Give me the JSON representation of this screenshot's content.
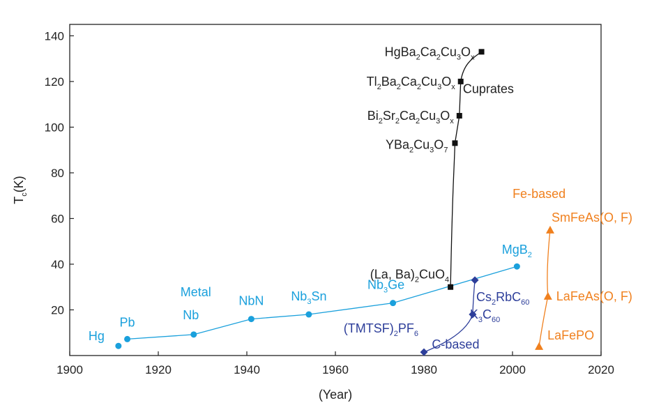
{
  "chart_data": {
    "type": "scatter",
    "xlabel": "(Year)",
    "ylabel": "Tc(K)",
    "xlim": [
      1900,
      2020
    ],
    "ylim": [
      0,
      145
    ],
    "xticks": [
      "1900",
      "1920",
      "1940",
      "1960",
      "1980",
      "2000",
      "2020"
    ],
    "yticks": [
      "20",
      "40",
      "60",
      "80",
      "100",
      "120",
      "140"
    ],
    "colors": {
      "metal": "#1aa0dc",
      "cuprate": "#111111",
      "carbon": "#2d3e9a",
      "iron": "#f0801e"
    },
    "series": [
      {
        "key": "metal",
        "name": "Metal",
        "marker": "circle",
        "points": [
          {
            "x": 1911,
            "y": 4.2,
            "label": "Hg"
          },
          {
            "x": 1913,
            "y": 7.2,
            "label": "Pb"
          },
          {
            "x": 1928,
            "y": 9.2,
            "label": "Nb"
          },
          {
            "x": 1941,
            "y": 16,
            "label": "NbN"
          },
          {
            "x": 1954,
            "y": 18,
            "label": "Nb3Sn"
          },
          {
            "x": 1973,
            "y": 23,
            "label": "Nb3Ge"
          },
          {
            "x": 2001,
            "y": 39,
            "label": "MgB2"
          }
        ]
      },
      {
        "key": "cuprate",
        "name": "Cuprates",
        "marker": "square",
        "points": [
          {
            "x": 1986,
            "y": 30,
            "label": "(La, Ba)2CuO4"
          },
          {
            "x": 1987,
            "y": 93,
            "label": "YBa2Cu3O7"
          },
          {
            "x": 1988,
            "y": 105,
            "label": "Bi2Sr2Ca2Cu3Ox"
          },
          {
            "x": 1988.3,
            "y": 120,
            "label": "Tl2Ba2Ca2Cu3Ox"
          },
          {
            "x": 1993,
            "y": 133,
            "label": "HgBa2Ca2Cu3Ox"
          }
        ]
      },
      {
        "key": "carbon",
        "name": "C-based",
        "marker": "diamond",
        "points": [
          {
            "x": 1980,
            "y": 1.5,
            "label": "(TMTSF)2PF6"
          },
          {
            "x": 1991,
            "y": 18,
            "label": "K3C60"
          },
          {
            "x": 1991.5,
            "y": 33,
            "label": "Cs2RbC60"
          }
        ]
      },
      {
        "key": "iron",
        "name": "Fe-based",
        "marker": "triangle",
        "points": [
          {
            "x": 2006,
            "y": 4,
            "label": "LaFePO"
          },
          {
            "x": 2008,
            "y": 26,
            "label": "LaFeAs(O, F)"
          },
          {
            "x": 2008.5,
            "y": 55,
            "label": "SmFeAs(O, F)"
          }
        ]
      }
    ],
    "annotations": {
      "metal": "Metal",
      "cuprates": "Cuprates",
      "carbon": "C-based",
      "iron": "Fe-based"
    }
  }
}
